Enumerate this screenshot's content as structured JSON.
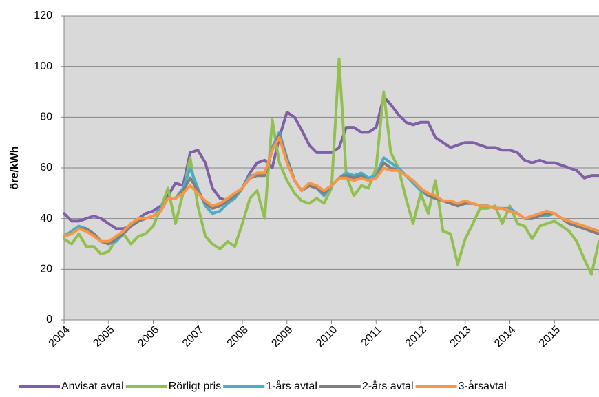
{
  "chart_data": {
    "type": "line",
    "y_label": "öre/kWh",
    "x": [
      2004,
      2004.17,
      2004.33,
      2004.5,
      2004.67,
      2004.83,
      2005,
      2005.17,
      2005.33,
      2005.5,
      2005.67,
      2005.83,
      2006,
      2006.17,
      2006.33,
      2006.5,
      2006.67,
      2006.83,
      2007,
      2007.17,
      2007.33,
      2007.5,
      2007.67,
      2007.83,
      2008,
      2008.17,
      2008.33,
      2008.5,
      2008.67,
      2008.83,
      2009,
      2009.17,
      2009.33,
      2009.5,
      2009.67,
      2009.83,
      2010,
      2010.17,
      2010.33,
      2010.5,
      2010.67,
      2010.83,
      2011,
      2011.17,
      2011.33,
      2011.5,
      2011.67,
      2011.83,
      2012,
      2012.17,
      2012.33,
      2012.5,
      2012.67,
      2012.83,
      2013,
      2013.17,
      2013.33,
      2013.5,
      2013.67,
      2013.83,
      2014,
      2014.17,
      2014.33,
      2014.5,
      2014.67,
      2014.83,
      2015,
      2015.17,
      2015.33,
      2015.5,
      2015.67,
      2015.83,
      2016
    ],
    "series": [
      {
        "name": "Anvisat avtal",
        "color": "#7f5fa6",
        "values": [
          42,
          39,
          39,
          40,
          41,
          40,
          38,
          36,
          36,
          37,
          40,
          42,
          43,
          45,
          49,
          54,
          53,
          66,
          67,
          62,
          52,
          48,
          47,
          48,
          52,
          58,
          62,
          63,
          60,
          72,
          82,
          80,
          75,
          69,
          66,
          66,
          66,
          68,
          76,
          76,
          74,
          74,
          76,
          88,
          85,
          81,
          78,
          77,
          78,
          78,
          72,
          70,
          68,
          69,
          70,
          70,
          69,
          68,
          68,
          67,
          67,
          66,
          63,
          62,
          63,
          62,
          62,
          61,
          60,
          59,
          56,
          57,
          57
        ]
      },
      {
        "name": "Rörligt pris",
        "color": "#92c050",
        "values": [
          32,
          30,
          34,
          29,
          29,
          26,
          27,
          32,
          34,
          30,
          33,
          34,
          37,
          44,
          52,
          38,
          50,
          64,
          45,
          33,
          30,
          28,
          31,
          29,
          38,
          48,
          51,
          40,
          79,
          62,
          55,
          50,
          47,
          46,
          48,
          46,
          52,
          103,
          57,
          49,
          53,
          52,
          60,
          90,
          66,
          60,
          48,
          38,
          50,
          42,
          55,
          35,
          34,
          22,
          32,
          38,
          44,
          44,
          45,
          38,
          45,
          38,
          37,
          32,
          37,
          38,
          39,
          37,
          35,
          31,
          24,
          18,
          31
        ]
      },
      {
        "name": "1-års avtal",
        "color": "#4bacc6",
        "values": [
          33,
          35,
          37,
          36,
          34,
          31,
          30,
          31,
          34,
          37,
          39,
          40,
          41,
          44,
          48,
          48,
          52,
          60,
          52,
          45,
          42,
          43,
          46,
          48,
          52,
          57,
          57,
          57,
          68,
          74,
          64,
          55,
          51,
          53,
          52,
          49,
          53,
          56,
          58,
          57,
          58,
          56,
          57,
          64,
          62,
          60,
          57,
          54,
          51,
          49,
          48,
          47,
          46,
          45,
          46,
          46,
          45,
          45,
          44,
          44,
          44,
          42,
          40,
          40,
          41,
          41,
          42,
          40,
          38,
          37,
          36,
          35,
          34
        ]
      },
      {
        "name": "2-års avtal",
        "color": "#7f7f7f",
        "values": [
          33,
          34,
          36,
          36,
          34,
          31,
          30,
          32,
          34,
          37,
          39,
          40,
          41,
          43,
          48,
          48,
          51,
          56,
          51,
          46,
          44,
          45,
          47,
          49,
          52,
          56,
          57,
          57,
          67,
          73,
          63,
          55,
          51,
          53,
          52,
          50,
          53,
          56,
          57,
          56,
          57,
          55,
          56,
          62,
          60,
          59,
          57,
          55,
          52,
          49,
          48,
          47,
          46,
          45,
          46,
          46,
          45,
          45,
          44,
          44,
          43,
          42,
          40,
          40,
          41,
          42,
          42,
          40,
          38,
          37,
          36,
          35,
          34
        ]
      },
      {
        "name": "3-årsavtal",
        "color": "#f79646",
        "values": [
          33,
          34,
          36,
          35,
          33,
          31,
          31,
          33,
          35,
          38,
          40,
          40,
          41,
          43,
          48,
          48,
          50,
          53,
          50,
          47,
          45,
          46,
          48,
          50,
          52,
          56,
          58,
          58,
          67,
          72,
          62,
          55,
          51,
          54,
          53,
          51,
          53,
          56,
          56,
          55,
          56,
          55,
          56,
          60,
          59,
          59,
          57,
          55,
          52,
          50,
          49,
          47,
          47,
          46,
          47,
          46,
          45,
          45,
          44,
          44,
          43,
          42,
          40,
          41,
          42,
          43,
          42,
          40,
          39,
          38,
          37,
          36,
          35
        ]
      }
    ],
    "xlim": [
      2004,
      2016
    ],
    "xticks": [
      2004,
      2005,
      2006,
      2007,
      2008,
      2009,
      2010,
      2011,
      2012,
      2013,
      2014,
      2015
    ],
    "ylim": [
      0,
      120
    ],
    "yticks": [
      0,
      20,
      40,
      60,
      80,
      100,
      120
    ],
    "grid": true,
    "legend": "bottom"
  }
}
